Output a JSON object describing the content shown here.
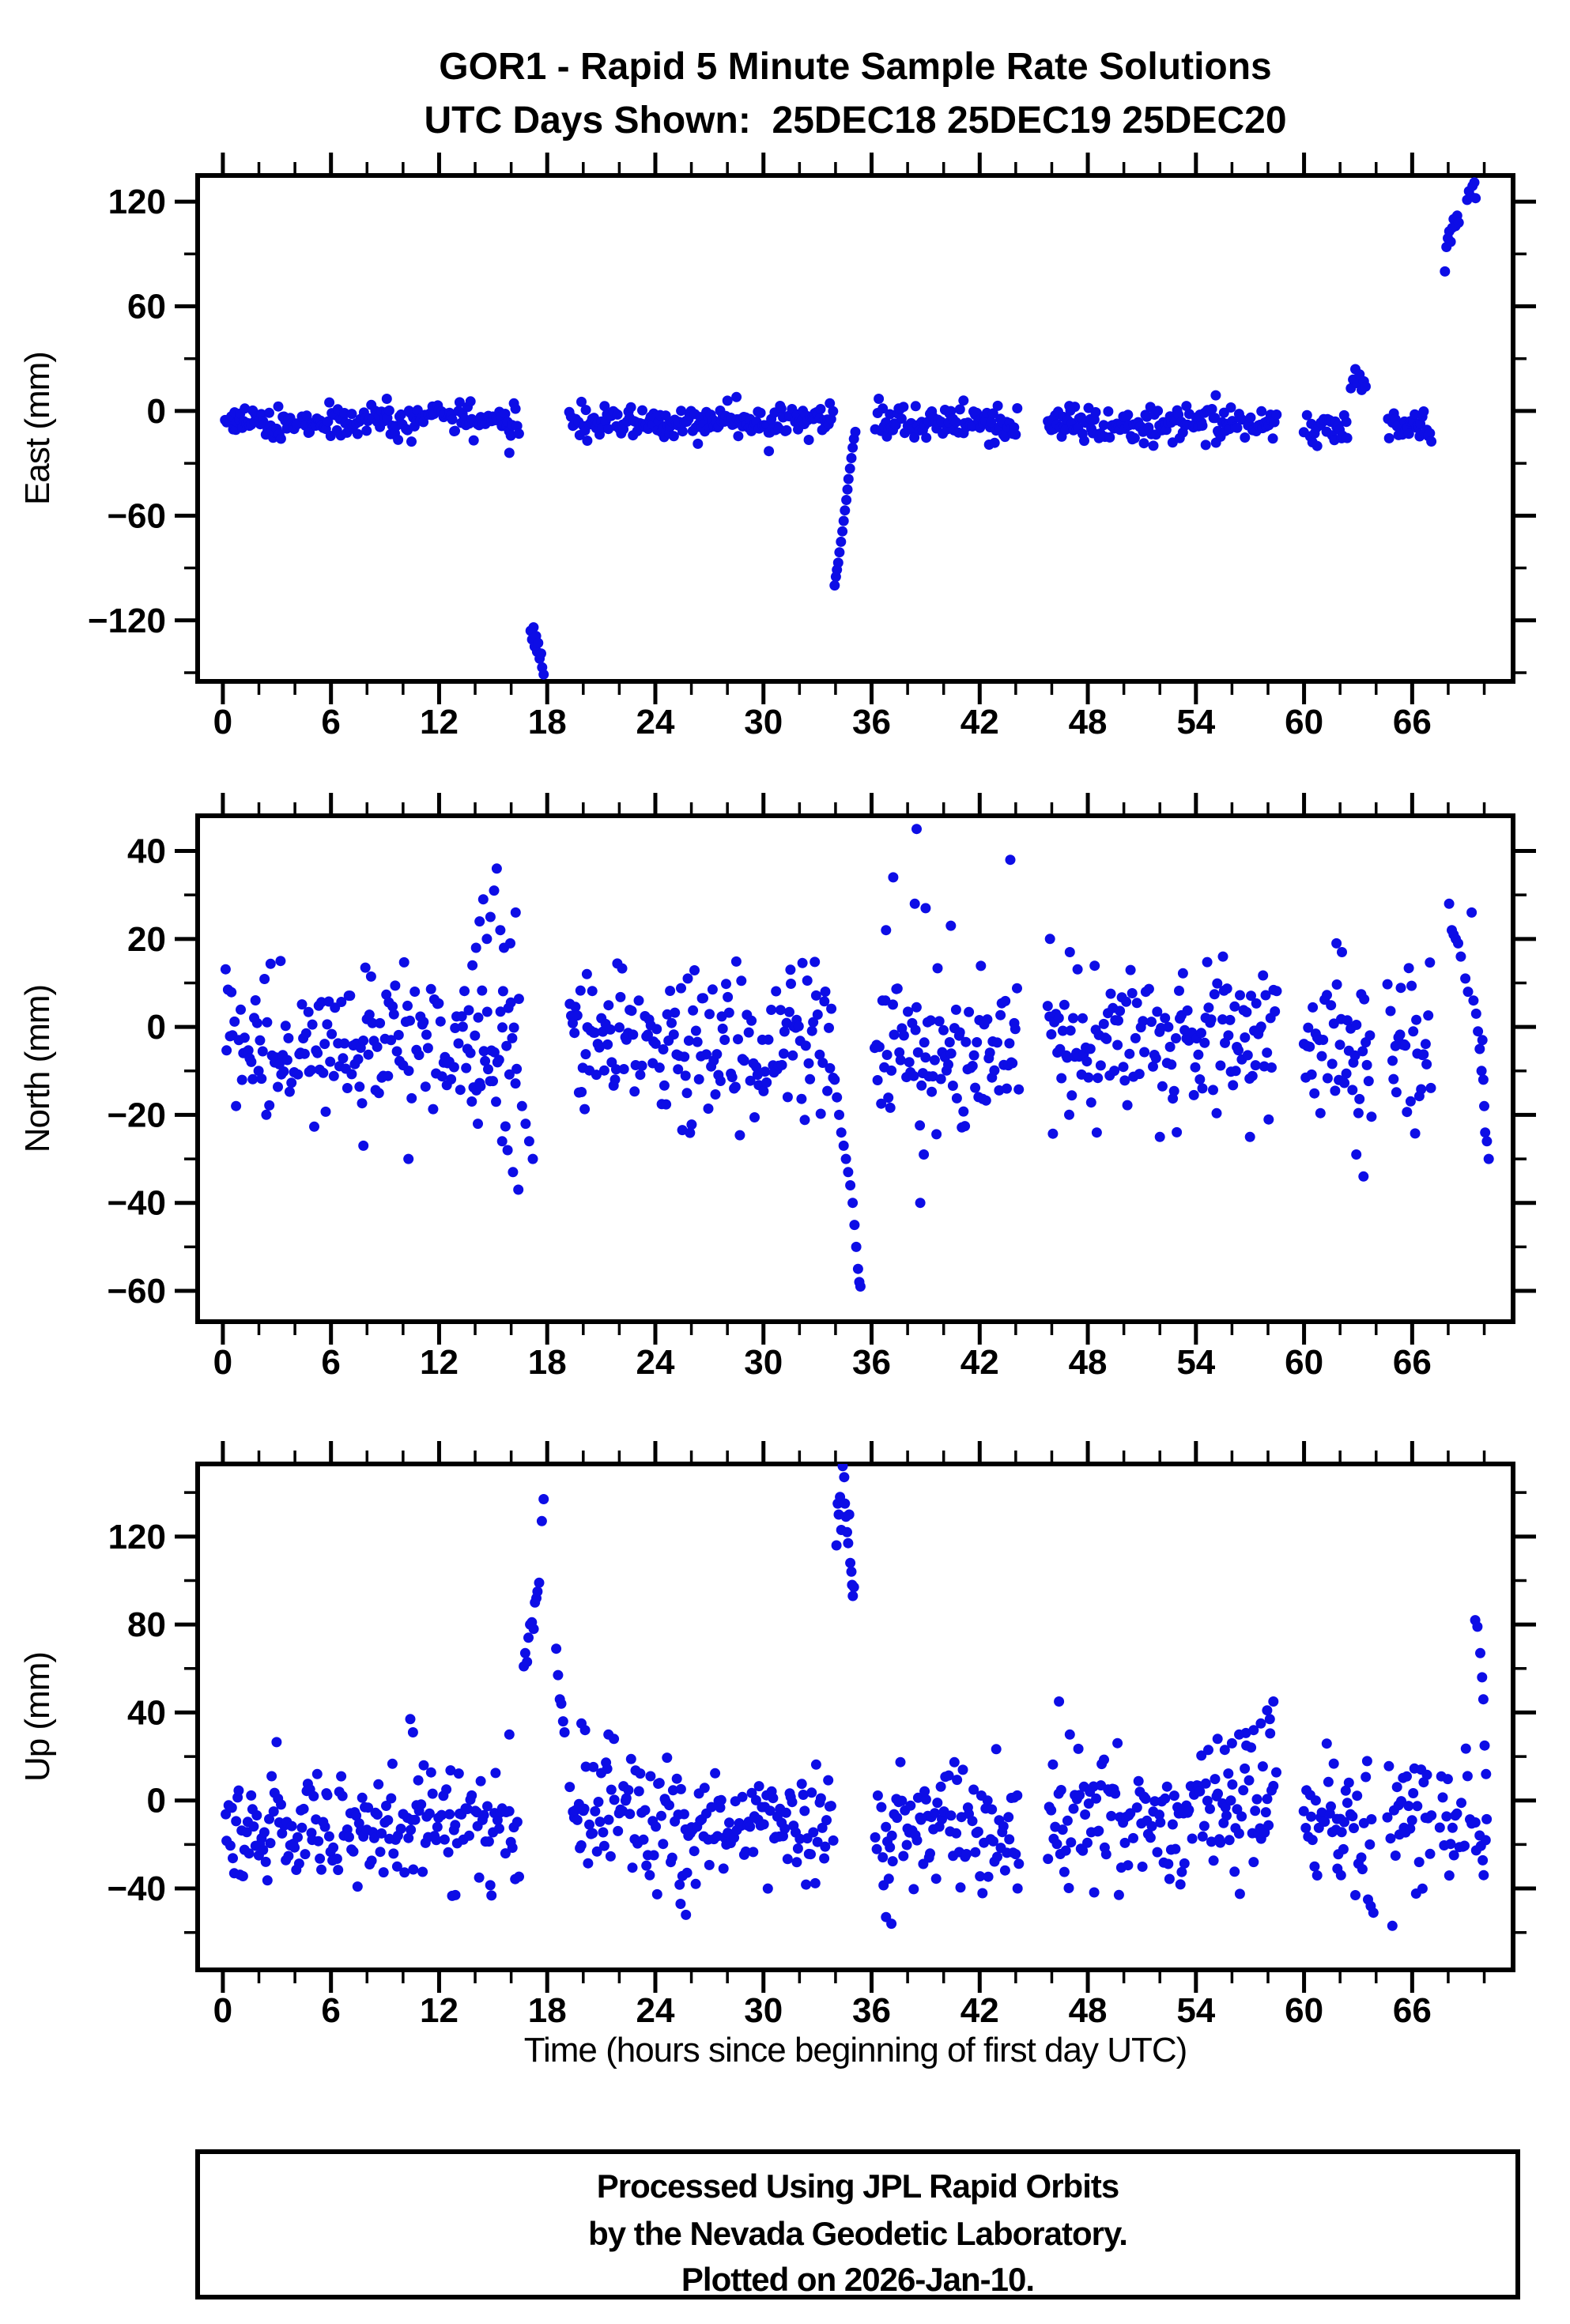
{
  "title": {
    "line1": "GOR1 - Rapid 5 Minute Sample Rate Solutions",
    "line2": "UTC Days Shown:  25DEC18 25DEC19 25DEC20"
  },
  "xlabel": "Time (hours since beginning of first day UTC)",
  "caption": {
    "lines": [
      "Processed Using JPL Rapid Orbits",
      "by the Nevada Geodetic Laboratory.",
      "Plotted on 2026-Jan-10."
    ]
  },
  "colors": {
    "marker": "#0d0de6",
    "frame": "#000000",
    "background": "#ffffff"
  },
  "chart_data": {
    "type": "scatter",
    "title": "GOR1 - Rapid 5 Minute Sample Rate Solutions",
    "subtitle": "UTC Days Shown: 25DEC18 25DEC19 25DEC20",
    "xlabel": "Time (hours since beginning of first day UTC)",
    "x": {
      "min": -1.4,
      "max": 71.6,
      "major_ticks": [
        0,
        6,
        12,
        18,
        24,
        30,
        36,
        42,
        48,
        54,
        60,
        66
      ],
      "minor_step": 2
    },
    "marker": {
      "shape": "circle",
      "radius_px": 6.5
    },
    "sample_rate_per_hour": 12,
    "panels": [
      {
        "id": "east",
        "ylabel": "East (mm)",
        "ylim_top": 135,
        "ylim_bottom": -155,
        "major_ticks": [
          120,
          60,
          0,
          -60,
          -120
        ],
        "minor_ticks": [
          90,
          30,
          -30,
          -90,
          -150
        ],
        "band": {
          "mean": -6,
          "sd": 5,
          "clip": [
            -21,
            7
          ],
          "segments": [
            [
              0.1,
              16.45
            ],
            [
              19.2,
              33.9
            ],
            [
              36.15,
              44.2,
              -7.5
            ],
            [
              45.75,
              58.5,
              -8
            ],
            [
              59.95,
              62.45,
              -9
            ],
            [
              64.6,
              67.1,
              -10
            ]
          ]
        },
        "features": {
          "dip_t17": [
            [
              17.08,
              -126
            ],
            [
              17.16,
              -131
            ],
            [
              17.24,
              -124
            ],
            [
              17.3,
              -135
            ],
            [
              17.38,
              -129
            ],
            [
              17.44,
              -138
            ],
            [
              17.5,
              -133
            ],
            [
              17.58,
              -142
            ],
            [
              17.66,
              -139
            ],
            [
              17.72,
              -147
            ],
            [
              17.8,
              -151
            ]
          ],
          "recovery_t34": [
            [
              33.95,
              -100
            ],
            [
              34.02,
              -95
            ],
            [
              34.08,
              -91
            ],
            [
              34.15,
              -87
            ],
            [
              34.22,
              -81
            ],
            [
              34.3,
              -75
            ],
            [
              34.38,
              -69
            ],
            [
              34.45,
              -63
            ],
            [
              34.52,
              -57
            ],
            [
              34.6,
              -51
            ],
            [
              34.66,
              -45
            ],
            [
              34.72,
              -39
            ],
            [
              34.8,
              -33
            ],
            [
              34.88,
              -27
            ],
            [
              34.95,
              -21
            ],
            [
              35.02,
              -16
            ],
            [
              35.1,
              -12
            ]
          ],
          "raised_t63": [
            [
              62.6,
              13
            ],
            [
              62.72,
              18
            ],
            [
              62.85,
              24
            ],
            [
              62.95,
              16
            ],
            [
              63.08,
              21
            ],
            [
              63.2,
              12
            ],
            [
              63.32,
              17
            ],
            [
              63.42,
              14
            ]
          ],
          "end_spike": [
            [
              67.82,
              80
            ],
            [
              67.9,
              94
            ],
            [
              67.98,
              99
            ],
            [
              68.06,
              103
            ],
            [
              68.14,
              97
            ],
            [
              68.22,
              105
            ],
            [
              68.3,
              110
            ],
            [
              68.4,
              106
            ],
            [
              68.5,
              112
            ],
            [
              68.58,
              108
            ],
            [
              69.05,
              121
            ],
            [
              69.15,
              126
            ],
            [
              69.25,
              123
            ],
            [
              69.35,
              129
            ],
            [
              69.45,
              131
            ],
            [
              69.52,
              122
            ]
          ],
          "stray": [
            [
              9.1,
              7
            ],
            [
              28.5,
              8
            ],
            [
              36.4,
              7
            ],
            [
              41.1,
              6
            ],
            [
              55.1,
              9
            ],
            [
              15.9,
              -24
            ],
            [
              30.3,
              -23
            ]
          ]
        }
      },
      {
        "id": "north",
        "ylabel": "North (mm)",
        "ylim_top": 48,
        "ylim_bottom": -67,
        "major_ticks": [
          40,
          20,
          0,
          -20,
          -40,
          -60
        ],
        "minor_ticks": [
          30,
          10,
          -10,
          -30,
          -50
        ],
        "band": {
          "mean": -4,
          "sd": 8.5,
          "clip": [
            -25,
            15
          ],
          "segments": [
            [
              0.1,
              16.45
            ],
            [
              19.2,
              33.9
            ],
            [
              36.15,
              44.2
            ],
            [
              45.75,
              58.5
            ],
            [
              59.95,
              63.8
            ],
            [
              64.6,
              67.1
            ]
          ]
        },
        "features": {
          "elevated_t14_16": [
            [
              13.85,
              14
            ],
            [
              14.05,
              18
            ],
            [
              14.15,
              -22
            ],
            [
              14.25,
              24
            ],
            [
              14.45,
              29
            ],
            [
              14.65,
              20
            ],
            [
              14.85,
              25
            ],
            [
              15.05,
              31
            ],
            [
              15.2,
              36
            ],
            [
              15.4,
              22
            ],
            [
              15.5,
              -26
            ],
            [
              15.6,
              18
            ],
            [
              15.8,
              -28
            ],
            [
              15.95,
              19
            ],
            [
              16.1,
              -33
            ],
            [
              16.25,
              26
            ],
            [
              16.4,
              -37
            ]
          ],
          "descent_t17": [
            [
              16.6,
              -18
            ],
            [
              16.8,
              -22
            ],
            [
              17.0,
              -26
            ],
            [
              17.2,
              -30
            ]
          ],
          "down_streak_t34_35": [
            [
              33.95,
              -12
            ],
            [
              34.08,
              -16
            ],
            [
              34.2,
              -20
            ],
            [
              34.32,
              -24
            ],
            [
              34.45,
              -27
            ],
            [
              34.58,
              -30
            ],
            [
              34.7,
              -33
            ],
            [
              34.82,
              -36
            ],
            [
              34.95,
              -40
            ],
            [
              35.05,
              -45
            ],
            [
              35.15,
              -50
            ],
            [
              35.25,
              -55
            ],
            [
              35.32,
              -58
            ],
            [
              35.38,
              -59
            ]
          ],
          "outliers": [
            [
              38.5,
              45
            ],
            [
              37.2,
              34
            ],
            [
              38.4,
              28
            ],
            [
              39.0,
              27
            ],
            [
              38.7,
              -40
            ],
            [
              38.9,
              -29
            ],
            [
              40.4,
              23
            ],
            [
              36.8,
              22
            ],
            [
              43.7,
              38
            ],
            [
              45.9,
              20
            ],
            [
              47.0,
              17
            ],
            [
              20.2,
              12
            ],
            [
              25.8,
              11
            ],
            [
              31.5,
              13
            ],
            [
              48.5,
              -24
            ],
            [
              52.0,
              -25
            ],
            [
              55.5,
              16
            ],
            [
              57.0,
              -25
            ],
            [
              61.8,
              19
            ],
            [
              62.1,
              17
            ],
            [
              62.9,
              -29
            ],
            [
              63.3,
              -34
            ],
            [
              10.3,
              -30
            ],
            [
              3.2,
              15
            ],
            [
              7.8,
              -27
            ]
          ],
          "end_chain": [
            [
              68.05,
              28
            ],
            [
              68.2,
              22
            ],
            [
              68.3,
              21
            ],
            [
              68.42,
              20
            ],
            [
              68.55,
              19
            ],
            [
              68.7,
              16
            ],
            [
              68.95,
              11
            ],
            [
              69.1,
              8
            ],
            [
              69.3,
              26
            ],
            [
              69.4,
              6
            ],
            [
              69.55,
              3
            ],
            [
              69.65,
              -1
            ],
            [
              69.75,
              -5
            ],
            [
              69.85,
              -10
            ],
            [
              69.9,
              -3
            ],
            [
              69.95,
              -12
            ],
            [
              70.0,
              -18
            ],
            [
              70.05,
              -24
            ],
            [
              70.15,
              -26
            ],
            [
              70.25,
              -30
            ]
          ]
        }
      },
      {
        "id": "up",
        "ylabel": "Up (mm)",
        "ylim_top": 153,
        "ylim_bottom": -77,
        "major_ticks": [
          120,
          80,
          40,
          0,
          -40
        ],
        "minor_ticks": [
          140,
          100,
          60,
          20,
          -20,
          -60
        ],
        "band": {
          "mean": -9,
          "sd": 14,
          "clip": [
            -44,
            31
          ],
          "segments": [
            [
              0.1,
              16.45,
              -12
            ],
            [
              19.2,
              33.9
            ],
            [
              36.15,
              44.2,
              -11
            ],
            [
              45.75,
              58.5,
              -6
            ],
            [
              59.95,
              63.8,
              -9
            ],
            [
              64.6,
              67.1,
              -10
            ],
            [
              67.5,
              70.2,
              -10
            ]
          ]
        },
        "features": {
          "spike_rise_t17": [
            [
              16.7,
              61
            ],
            [
              16.78,
              67
            ],
            [
              16.88,
              63
            ],
            [
              16.96,
              74
            ],
            [
              17.05,
              80
            ],
            [
              17.15,
              81
            ],
            [
              17.25,
              78
            ],
            [
              17.32,
              90
            ],
            [
              17.4,
              92
            ],
            [
              17.46,
              95
            ],
            [
              17.55,
              99
            ],
            [
              17.7,
              127
            ],
            [
              17.8,
              137
            ]
          ],
          "spike_fall_t18": [
            [
              18.5,
              69
            ],
            [
              18.6,
              57
            ],
            [
              18.7,
              46
            ],
            [
              18.78,
              44
            ],
            [
              18.88,
              36
            ],
            [
              18.96,
              31
            ]
          ],
          "spike_t34": [
            [
              34.05,
              116
            ],
            [
              34.12,
              135
            ],
            [
              34.18,
              130
            ],
            [
              34.25,
              138
            ],
            [
              34.32,
              123
            ],
            [
              34.4,
              152
            ],
            [
              34.48,
              147
            ],
            [
              34.52,
              135
            ],
            [
              34.58,
              129
            ],
            [
              34.64,
              122
            ],
            [
              34.7,
              117
            ],
            [
              34.76,
              130
            ],
            [
              34.82,
              108
            ],
            [
              34.88,
              104
            ],
            [
              34.92,
              98
            ],
            [
              34.96,
              93
            ],
            [
              35.02,
              97
            ]
          ],
          "end_cluster": [
            [
              69.5,
              82
            ],
            [
              69.62,
              79
            ],
            [
              69.78,
              67
            ],
            [
              69.88,
              56
            ],
            [
              69.95,
              46
            ],
            [
              70.02,
              25
            ],
            [
              70.1,
              12
            ]
          ],
          "lows": [
            [
              12.9,
              -43
            ],
            [
              25.4,
              -47
            ],
            [
              25.7,
              -52
            ],
            [
              36.8,
              -53
            ],
            [
              37.1,
              -56
            ],
            [
              44.1,
              -40
            ],
            [
              61.85,
              -31
            ],
            [
              62.05,
              -34
            ],
            [
              63.55,
              -45
            ],
            [
              63.7,
              -48
            ],
            [
              63.85,
              -51
            ],
            [
              64.9,
              -57
            ]
          ],
          "highs": [
            [
              10.4,
              37
            ],
            [
              10.55,
              31
            ],
            [
              15.9,
              30
            ],
            [
              19.9,
              35
            ],
            [
              20.1,
              32
            ],
            [
              21.4,
              30
            ],
            [
              21.7,
              28
            ],
            [
              46.4,
              45
            ],
            [
              47.0,
              30
            ],
            [
              55.2,
              28
            ],
            [
              55.6,
              23
            ],
            [
              56.0,
              26
            ],
            [
              56.4,
              30
            ],
            [
              56.8,
              25
            ],
            [
              57.2,
              32
            ],
            [
              57.6,
              35
            ],
            [
              57.95,
              41
            ],
            [
              58.1,
              37
            ],
            [
              58.3,
              45
            ]
          ]
        }
      }
    ]
  }
}
